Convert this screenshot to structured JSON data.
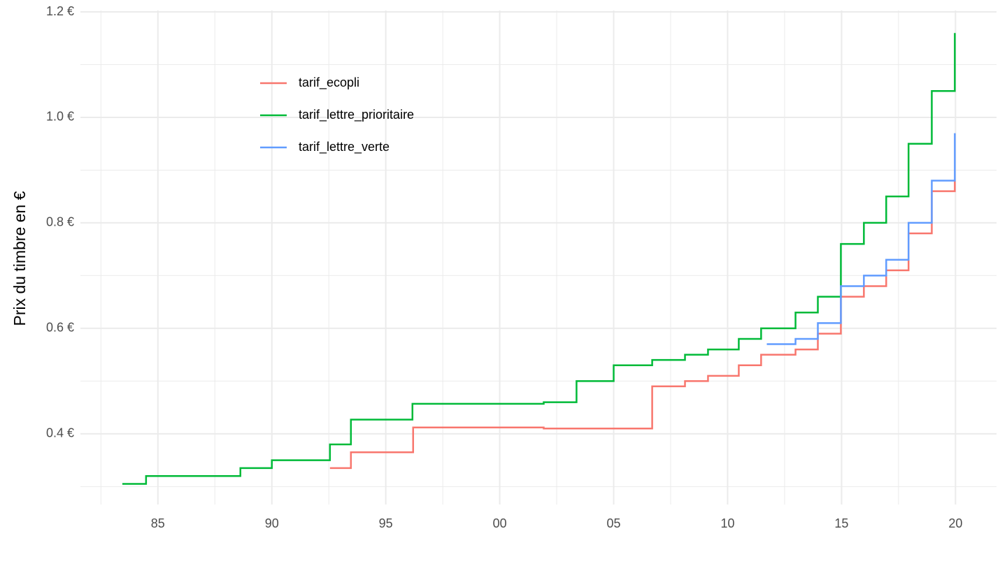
{
  "chart_data": {
    "type": "step",
    "y_label": "Prix du timbre en €",
    "xlim": [
      1981.6,
      2021.8
    ],
    "ylim": [
      0.266,
      1.2
    ],
    "xticks": [
      {
        "value": 1985,
        "label": "85"
      },
      {
        "value": 1990,
        "label": "90"
      },
      {
        "value": 1995,
        "label": "95"
      },
      {
        "value": 2000,
        "label": "00"
      },
      {
        "value": 2005,
        "label": "05"
      },
      {
        "value": 2010,
        "label": "10"
      },
      {
        "value": 2015,
        "label": "15"
      },
      {
        "value": 2020,
        "label": "20"
      }
    ],
    "minor_xticks": [
      1982.5,
      1987.5,
      1992.5,
      1997.5,
      2002.5,
      2007.5,
      2012.5,
      2017.5
    ],
    "yticks": [
      {
        "value": 0.4,
        "label": "0.4 €"
      },
      {
        "value": 0.6,
        "label": "0.6 €"
      },
      {
        "value": 0.8,
        "label": "0.8 €"
      },
      {
        "value": 1.0,
        "label": "1.0 €"
      },
      {
        "value": 1.2,
        "label": "1.2 €"
      }
    ],
    "minor_yticks": [
      0.3,
      0.5,
      0.7,
      0.9,
      1.1
    ],
    "grid": true,
    "legend": "top-left",
    "series": [
      {
        "name": "tarif_ecopli",
        "color": "#f8766d",
        "x": [
          1992.55,
          1993.47,
          1996.2,
          2001.93,
          2006.69,
          2008.13,
          2009.14,
          2010.49,
          2011.47,
          2012.98,
          2013.96,
          2014.97,
          2015.98,
          2016.96,
          2017.94,
          2018.96,
          2019.97
        ],
        "values": [
          0.335,
          0.365,
          0.412,
          0.41,
          0.49,
          0.5,
          0.51,
          0.53,
          0.55,
          0.56,
          0.59,
          0.66,
          0.68,
          0.71,
          0.78,
          0.86,
          0.88
        ]
      },
      {
        "name": "tarif_lettre_prioritaire",
        "color": "#00ba38",
        "x": [
          1983.44,
          1984.48,
          1988.62,
          1990.0,
          1992.55,
          1993.47,
          1996.17,
          2001.93,
          2003.37,
          2005.0,
          2006.69,
          2008.13,
          2009.14,
          2010.49,
          2011.47,
          2012.98,
          2013.96,
          2014.97,
          2015.98,
          2016.96,
          2017.94,
          2018.96,
          2019.97
        ],
        "values": [
          0.305,
          0.32,
          0.335,
          0.35,
          0.38,
          0.427,
          0.457,
          0.46,
          0.5,
          0.53,
          0.54,
          0.55,
          0.56,
          0.58,
          0.6,
          0.63,
          0.66,
          0.76,
          0.8,
          0.85,
          0.95,
          1.05,
          1.16
        ]
      },
      {
        "name": "tarif_lettre_verte",
        "color": "#619cff",
        "x": [
          2011.72,
          2012.98,
          2013.96,
          2014.97,
          2015.98,
          2016.96,
          2017.94,
          2018.96,
          2019.97
        ],
        "values": [
          0.57,
          0.58,
          0.61,
          0.68,
          0.7,
          0.73,
          0.8,
          0.88,
          0.97
        ]
      }
    ]
  }
}
